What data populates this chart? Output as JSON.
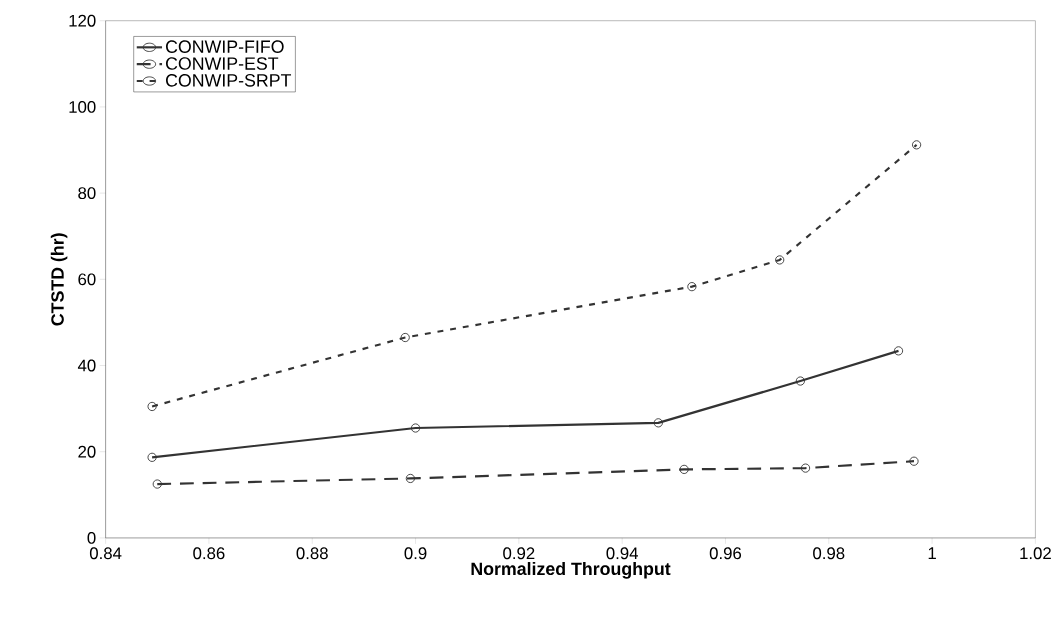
{
  "chart_data": {
    "type": "line",
    "xlabel": "Normalized Throughput",
    "ylabel": "CTSTD (hr)",
    "xlim": [
      0.84,
      1.02
    ],
    "xticks": [
      0.84,
      0.86,
      0.88,
      0.9,
      0.92,
      0.94,
      0.96,
      0.98,
      1,
      1.02
    ],
    "ylim": [
      0,
      120
    ],
    "yticks": [
      0,
      20,
      40,
      60,
      80,
      100,
      120
    ],
    "grid": false,
    "legend": "top left",
    "marker": "circle",
    "series": [
      {
        "name": "CONWIP-FIFO",
        "color": "#333333",
        "line_style": "solid",
        "x": [
          0.849,
          0.9,
          0.947,
          0.9745,
          0.9935
        ],
        "values": [
          18.7,
          25.5,
          26.7,
          36.4,
          43.4
        ]
      },
      {
        "name": "CONWIP-EST",
        "color": "#333333",
        "line_style": "dashed",
        "x": [
          0.85,
          0.899,
          0.952,
          0.9755,
          0.9965
        ],
        "values": [
          12.5,
          13.8,
          15.9,
          16.2,
          17.8
        ]
      },
      {
        "name": "CONWIP-SRPT",
        "color": "#333333",
        "line_style": "dotted",
        "x": [
          0.849,
          0.898,
          0.9535,
          0.9705,
          0.997
        ],
        "values": [
          30.5,
          46.5,
          58.3,
          64.5,
          91.2
        ]
      }
    ]
  }
}
